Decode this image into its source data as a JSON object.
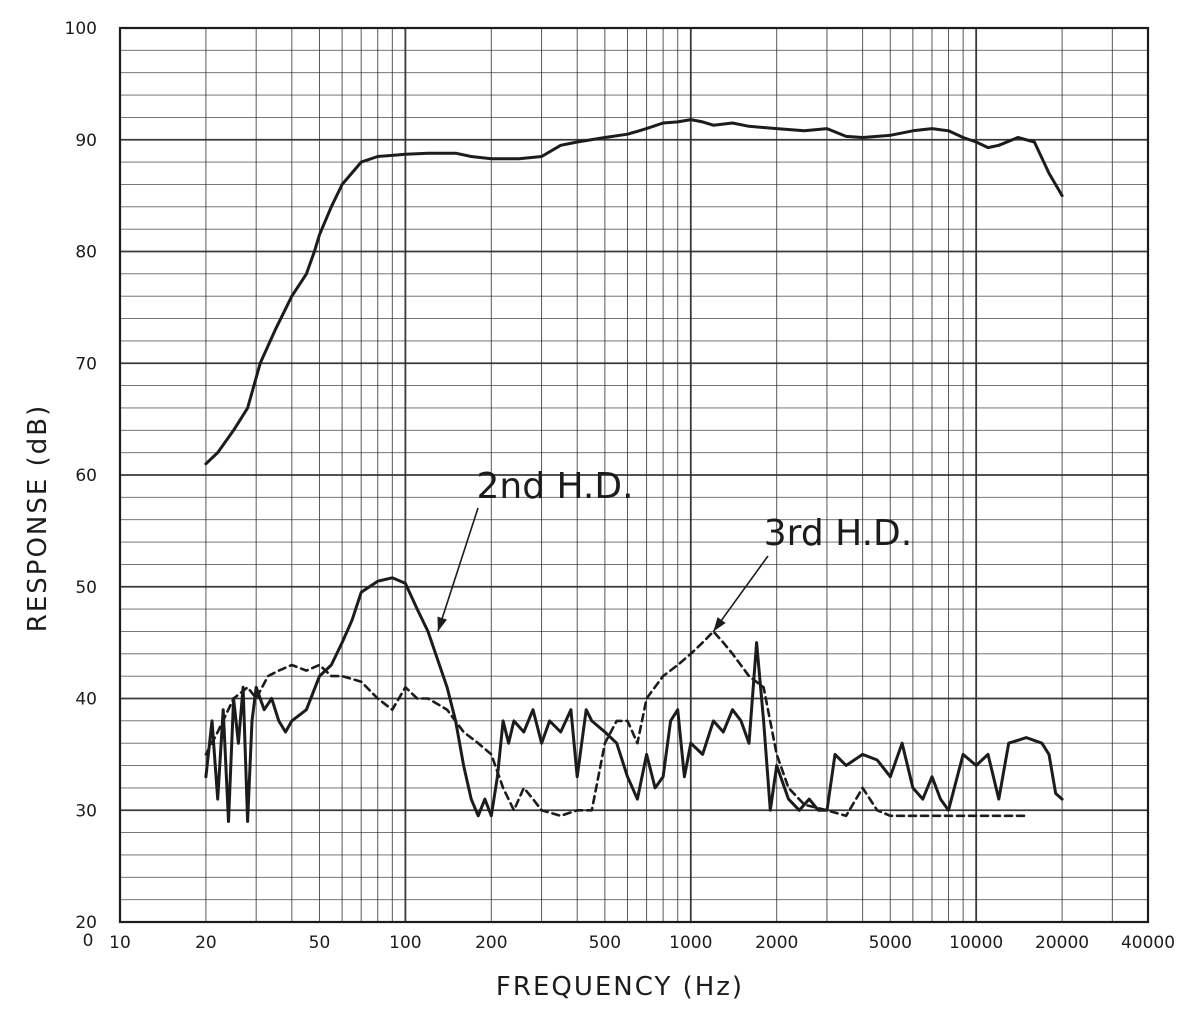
{
  "chart_data": {
    "type": "line",
    "xlabel": "FREQUENCY (Hz)",
    "ylabel": "RESPONSE (dB)",
    "x_scale": "log",
    "xlim": [
      10,
      40000
    ],
    "ylim": [
      20,
      100
    ],
    "grid": true,
    "x_ticks": [
      10,
      20,
      50,
      100,
      200,
      500,
      1000,
      2000,
      5000,
      10000,
      20000,
      40000
    ],
    "x_tick_labels": [
      "10",
      "20",
      "50",
      "100",
      "200",
      "500",
      "1000",
      "2000",
      "5000",
      "10000",
      "20000",
      "40000"
    ],
    "x_origin_label": "0",
    "y_ticks": [
      20,
      30,
      40,
      50,
      60,
      70,
      80,
      90,
      100
    ],
    "y_tick_labels": [
      "20",
      "30",
      "40",
      "50",
      "60",
      "70",
      "80",
      "90",
      "100"
    ],
    "series": [
      {
        "style": "solid",
        "points": [
          [
            20,
            61
          ],
          [
            22,
            62
          ],
          [
            25,
            64
          ],
          [
            28,
            66
          ],
          [
            31,
            70
          ],
          [
            35,
            73
          ],
          [
            40,
            76
          ],
          [
            45,
            78
          ],
          [
            48,
            80
          ],
          [
            50,
            81.5
          ],
          [
            55,
            84
          ],
          [
            60,
            86
          ],
          [
            70,
            88
          ],
          [
            80,
            88.5
          ],
          [
            90,
            88.6
          ],
          [
            100,
            88.7
          ],
          [
            120,
            88.8
          ],
          [
            150,
            88.8
          ],
          [
            170,
            88.5
          ],
          [
            200,
            88.3
          ],
          [
            250,
            88.3
          ],
          [
            300,
            88.5
          ],
          [
            350,
            89.5
          ],
          [
            400,
            89.8
          ],
          [
            500,
            90.2
          ],
          [
            600,
            90.5
          ],
          [
            700,
            91
          ],
          [
            800,
            91.5
          ],
          [
            900,
            91.6
          ],
          [
            1000,
            91.8
          ],
          [
            1100,
            91.6
          ],
          [
            1200,
            91.3
          ],
          [
            1400,
            91.5
          ],
          [
            1600,
            91.2
          ],
          [
            2000,
            91
          ],
          [
            2500,
            90.8
          ],
          [
            3000,
            91
          ],
          [
            3500,
            90.3
          ],
          [
            4000,
            90.2
          ],
          [
            5000,
            90.4
          ],
          [
            6000,
            90.8
          ],
          [
            7000,
            91
          ],
          [
            8000,
            90.8
          ],
          [
            9000,
            90.2
          ],
          [
            10000,
            89.8
          ],
          [
            11000,
            89.3
          ],
          [
            12000,
            89.5
          ],
          [
            14000,
            90.2
          ],
          [
            16000,
            89.8
          ],
          [
            18000,
            87
          ],
          [
            20000,
            85
          ]
        ]
      },
      {
        "name": "2nd H.D.",
        "style": "solid",
        "points": [
          [
            20,
            33
          ],
          [
            21,
            38
          ],
          [
            22,
            31
          ],
          [
            23,
            39
          ],
          [
            24,
            29
          ],
          [
            25,
            40
          ],
          [
            26,
            36
          ],
          [
            27,
            41
          ],
          [
            28,
            29
          ],
          [
            29,
            38
          ],
          [
            30,
            41
          ],
          [
            32,
            39
          ],
          [
            34,
            40
          ],
          [
            36,
            38
          ],
          [
            38,
            37
          ],
          [
            40,
            38
          ],
          [
            45,
            39
          ],
          [
            50,
            42
          ],
          [
            55,
            43
          ],
          [
            60,
            45
          ],
          [
            65,
            47
          ],
          [
            70,
            49.5
          ],
          [
            80,
            50.5
          ],
          [
            90,
            50.8
          ],
          [
            100,
            50.3
          ],
          [
            110,
            48
          ],
          [
            120,
            46
          ],
          [
            140,
            41
          ],
          [
            150,
            38
          ],
          [
            160,
            34
          ],
          [
            170,
            31
          ],
          [
            180,
            29.5
          ],
          [
            190,
            31
          ],
          [
            200,
            29.5
          ],
          [
            210,
            33
          ],
          [
            220,
            38
          ],
          [
            230,
            36
          ],
          [
            240,
            38
          ],
          [
            260,
            37
          ],
          [
            280,
            39
          ],
          [
            300,
            36
          ],
          [
            320,
            38
          ],
          [
            350,
            37
          ],
          [
            380,
            39
          ],
          [
            400,
            33
          ],
          [
            430,
            39
          ],
          [
            450,
            38
          ],
          [
            500,
            37
          ],
          [
            550,
            36
          ],
          [
            600,
            33
          ],
          [
            650,
            31
          ],
          [
            700,
            35
          ],
          [
            750,
            32
          ],
          [
            800,
            33
          ],
          [
            850,
            38
          ],
          [
            900,
            39
          ],
          [
            950,
            33
          ],
          [
            1000,
            36
          ],
          [
            1100,
            35
          ],
          [
            1200,
            38
          ],
          [
            1300,
            37
          ],
          [
            1400,
            39
          ],
          [
            1500,
            38
          ],
          [
            1600,
            36
          ],
          [
            1700,
            45
          ],
          [
            1800,
            38
          ],
          [
            1900,
            30
          ],
          [
            2000,
            34
          ],
          [
            2200,
            31
          ],
          [
            2400,
            30
          ],
          [
            2600,
            31
          ],
          [
            2800,
            30
          ],
          [
            3000,
            30
          ],
          [
            3200,
            35
          ],
          [
            3500,
            34
          ],
          [
            4000,
            35
          ],
          [
            4500,
            34.5
          ],
          [
            5000,
            33
          ],
          [
            5500,
            36
          ],
          [
            6000,
            32
          ],
          [
            6500,
            31
          ],
          [
            7000,
            33
          ],
          [
            7500,
            31
          ],
          [
            8000,
            30
          ],
          [
            9000,
            35
          ],
          [
            10000,
            34
          ],
          [
            11000,
            35
          ],
          [
            12000,
            31
          ],
          [
            13000,
            36
          ],
          [
            15000,
            36.5
          ],
          [
            17000,
            36
          ],
          [
            18000,
            35
          ],
          [
            19000,
            31.5
          ],
          [
            20000,
            31
          ]
        ]
      },
      {
        "name": "3rd H.D.",
        "style": "dashed",
        "points": [
          [
            20,
            35
          ],
          [
            22,
            37
          ],
          [
            25,
            40
          ],
          [
            28,
            41
          ],
          [
            30,
            40
          ],
          [
            33,
            42
          ],
          [
            36,
            42.5
          ],
          [
            40,
            43
          ],
          [
            45,
            42.5
          ],
          [
            50,
            43
          ],
          [
            55,
            42
          ],
          [
            60,
            42
          ],
          [
            70,
            41.5
          ],
          [
            80,
            40
          ],
          [
            90,
            39
          ],
          [
            100,
            41
          ],
          [
            110,
            40
          ],
          [
            120,
            40
          ],
          [
            140,
            39
          ],
          [
            160,
            37
          ],
          [
            180,
            36
          ],
          [
            200,
            35
          ],
          [
            220,
            32
          ],
          [
            240,
            30
          ],
          [
            260,
            32
          ],
          [
            280,
            31
          ],
          [
            300,
            30
          ],
          [
            350,
            29.5
          ],
          [
            400,
            30
          ],
          [
            450,
            30
          ],
          [
            500,
            36
          ],
          [
            550,
            38
          ],
          [
            600,
            38
          ],
          [
            650,
            36
          ],
          [
            700,
            40
          ],
          [
            800,
            42
          ],
          [
            900,
            43
          ],
          [
            1000,
            44
          ],
          [
            1100,
            45
          ],
          [
            1200,
            46
          ],
          [
            1300,
            45
          ],
          [
            1400,
            44
          ],
          [
            1600,
            42
          ],
          [
            1800,
            41
          ],
          [
            2000,
            35
          ],
          [
            2200,
            32
          ],
          [
            2500,
            30.5
          ],
          [
            3000,
            30
          ],
          [
            3500,
            29.5
          ],
          [
            4000,
            32
          ],
          [
            4500,
            30
          ],
          [
            5000,
            29.5
          ],
          [
            6000,
            29.5
          ],
          [
            7000,
            29.5
          ],
          [
            8000,
            29.5
          ],
          [
            10000,
            29.5
          ],
          [
            12000,
            29.5
          ],
          [
            15000,
            29.5
          ]
        ]
      }
    ],
    "annotations": [
      {
        "text": "2nd H.D.",
        "series": 1,
        "points_to": [
          130,
          46
        ]
      },
      {
        "text": "3rd H.D.",
        "series": 2,
        "points_to": [
          1200,
          46
        ]
      }
    ],
    "colors": {
      "grid": "#2f2f2f",
      "ink": "#1c1c1c",
      "background": "#ffffff"
    }
  }
}
